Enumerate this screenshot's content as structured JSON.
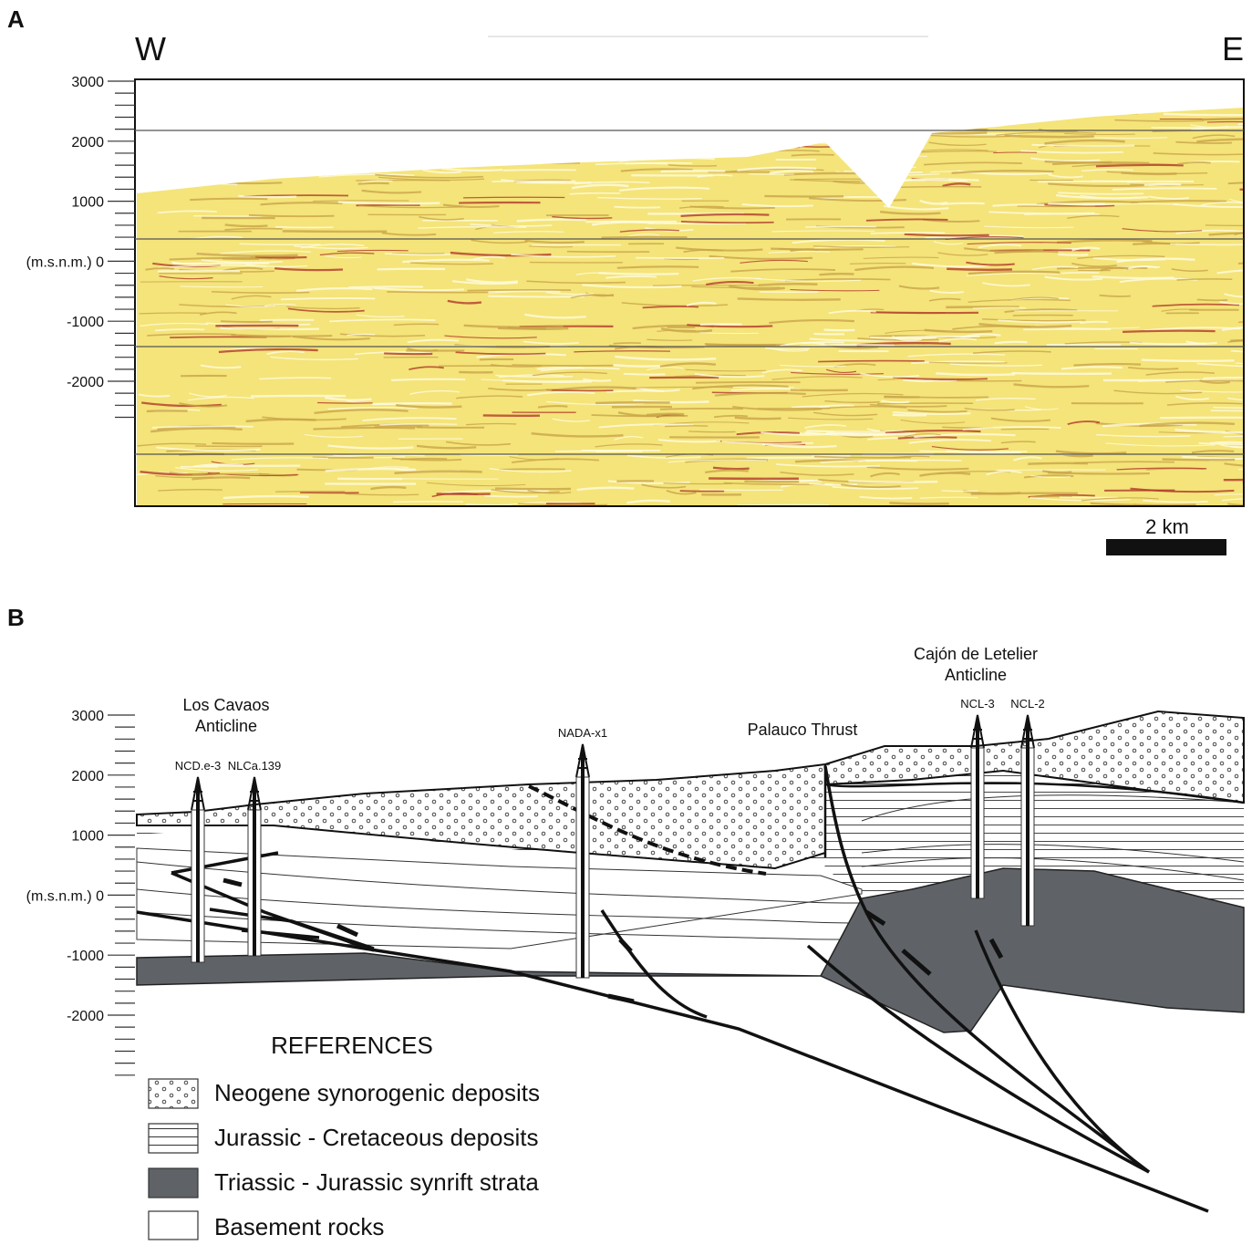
{
  "panel_a": {
    "label": "A",
    "west": "W",
    "east": "E",
    "axis_labels": [
      "3000",
      "2000",
      "1000",
      "(m.s.n.m.) 0",
      "-1000",
      "-2000"
    ],
    "scale_bar": "2 km"
  },
  "panel_b": {
    "label": "B",
    "axis_labels": [
      "3000",
      "2000",
      "1000",
      "(m.s.n.m.) 0",
      "-1000",
      "-2000"
    ],
    "structures": [
      {
        "lines": [
          "Los Cavaos",
          "Anticline"
        ]
      },
      {
        "lines": [
          "Palauco Thrust"
        ]
      },
      {
        "lines": [
          "Cajón de Letelier",
          "Anticline"
        ]
      }
    ],
    "wells": [
      "NCD.e-3",
      "NLCa.139",
      "NADA-x1",
      "NCL-3",
      "NCL-2"
    ],
    "references": {
      "title": "REFERENCES",
      "items": [
        "Neogene synorogenic deposits",
        "Jurassic - Cretaceous deposits",
        "Triassic - Jurassic synrift strata",
        "Basement rocks"
      ]
    }
  }
}
